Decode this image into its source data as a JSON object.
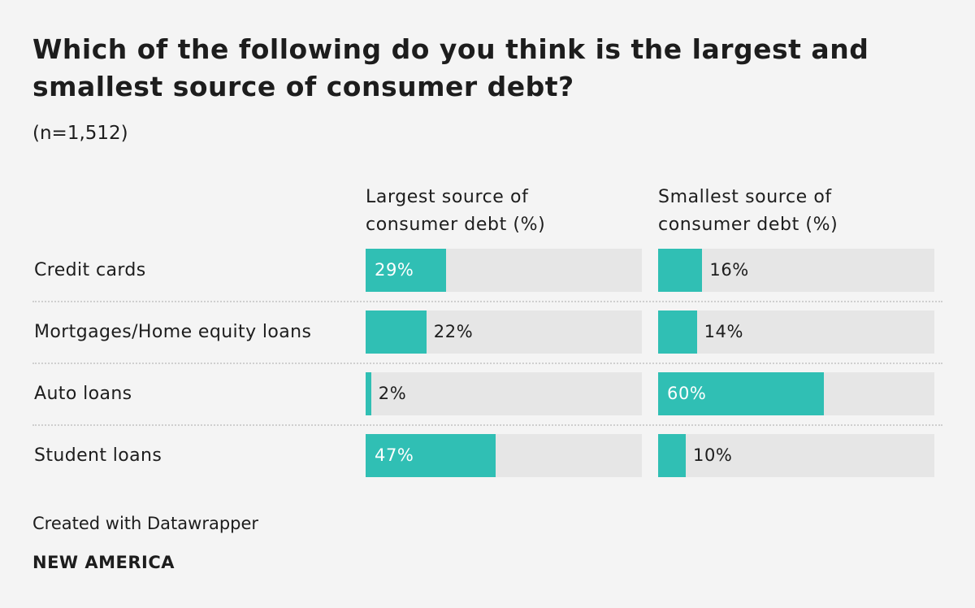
{
  "chart_data": {
    "type": "bar",
    "title": "Which of the following do you think is the largest and smallest source of consumer debt?",
    "subtitle": "(n=1,512)",
    "categories": [
      "Credit cards",
      "Mortgages/Home equity loans",
      "Auto loans",
      "Student loans"
    ],
    "series": [
      {
        "name": "Largest source of consumer debt (%)",
        "color": "#30bfb4",
        "values": [
          29,
          22,
          2,
          47
        ],
        "value_labels": [
          "29%",
          "22%",
          "2%",
          "47%"
        ]
      },
      {
        "name": "Smallest source of consumer debt (%)",
        "color": "#30bfb4",
        "values": [
          16,
          14,
          60,
          10
        ],
        "value_labels": [
          "16%",
          "14%",
          "60%",
          "10%"
        ]
      }
    ],
    "xlim": [
      0,
      100
    ]
  },
  "footer": {
    "credit": "Created with Datawrapper",
    "brand": "NEW AMERICA"
  }
}
